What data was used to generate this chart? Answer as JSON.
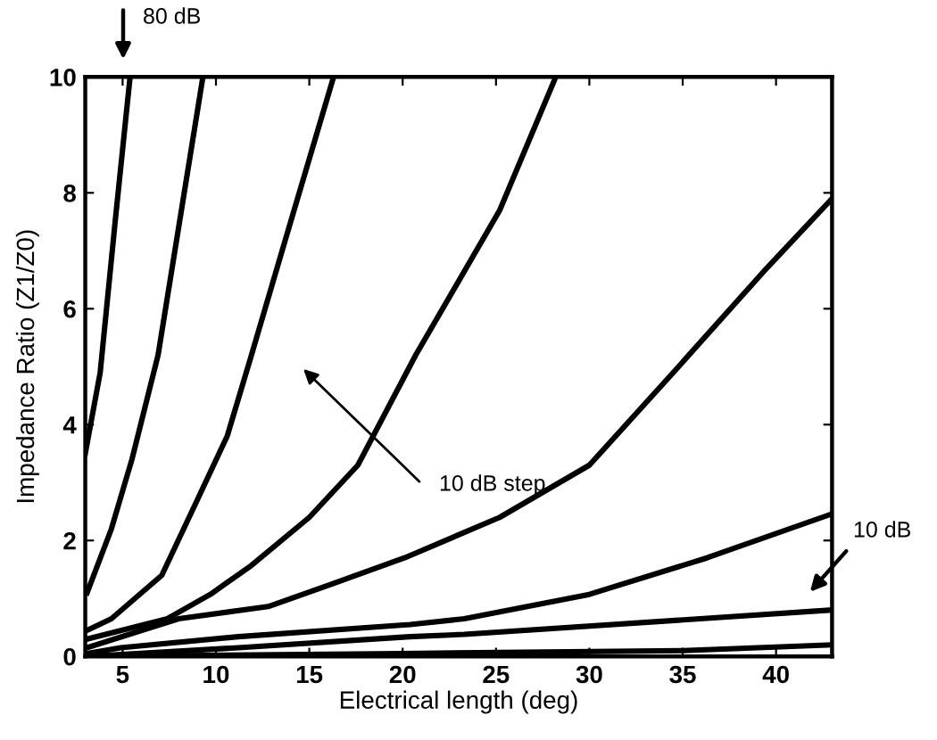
{
  "chart_data": {
    "type": "line",
    "xlabel": "Electrical length (deg)",
    "ylabel": "Impedance Ratio (Z1/Z0)",
    "xlim": [
      3,
      43
    ],
    "ylim": [
      0,
      10
    ],
    "xticks": [
      5,
      10,
      15,
      20,
      25,
      30,
      35,
      40
    ],
    "yticks": [
      0,
      2,
      4,
      6,
      8,
      10
    ],
    "grid": false,
    "legend": false,
    "marker": "none",
    "line_style": "solid",
    "series": [
      {
        "color": "#000000",
        "x": [
          3,
          3.8,
          4.6,
          5.4
        ],
        "values": [
          3.5,
          4.9,
          7.5,
          10
        ]
      },
      {
        "color": "#000000",
        "x": [
          3.1,
          4.4,
          5.5,
          6.9,
          8,
          9.3
        ],
        "values": [
          1.1,
          2.2,
          3.4,
          5.2,
          7.4,
          10
        ]
      },
      {
        "color": "#000000",
        "x": [
          3.1,
          4.4,
          7.1,
          9,
          10.6,
          11.9,
          14,
          16.3
        ],
        "values": [
          0.45,
          0.65,
          1.4,
          2.7,
          3.8,
          5.2,
          7.5,
          10
        ]
      },
      {
        "color": "#000000",
        "x": [
          3.1,
          7.4,
          9.7,
          11.9,
          15,
          17.6,
          20.7,
          25.2,
          28.2
        ],
        "values": [
          0.3,
          0.65,
          1.07,
          1.57,
          2.4,
          3.3,
          5.2,
          7.7,
          10
        ]
      },
      {
        "color": "#000000",
        "x": [
          3.1,
          8,
          12.8,
          16.3,
          20.1,
          25.2,
          30,
          34.5,
          39.5,
          43
        ],
        "values": [
          0.15,
          0.65,
          0.86,
          1.26,
          1.7,
          2.4,
          3.3,
          4.9,
          6.7,
          7.9
        ]
      },
      {
        "color": "#000000",
        "x": [
          3.1,
          4.9,
          11.2,
          20.4,
          23.3,
          30,
          36.3,
          43
        ],
        "values": [
          0.05,
          0.15,
          0.34,
          0.55,
          0.65,
          1.07,
          1.7,
          2.46
        ]
      },
      {
        "color": "#000000",
        "x": [
          3.1,
          11.2,
          20.4,
          23.3,
          43
        ],
        "values": [
          0,
          0.15,
          0.34,
          0.38,
          0.8
        ]
      },
      {
        "color": "#000000",
        "x": [
          3,
          20,
          35,
          43
        ],
        "values": [
          0,
          0.05,
          0.1,
          0.2
        ]
      }
    ],
    "annotations": [
      "80 dB",
      "10 dB step",
      "10 dB"
    ]
  }
}
